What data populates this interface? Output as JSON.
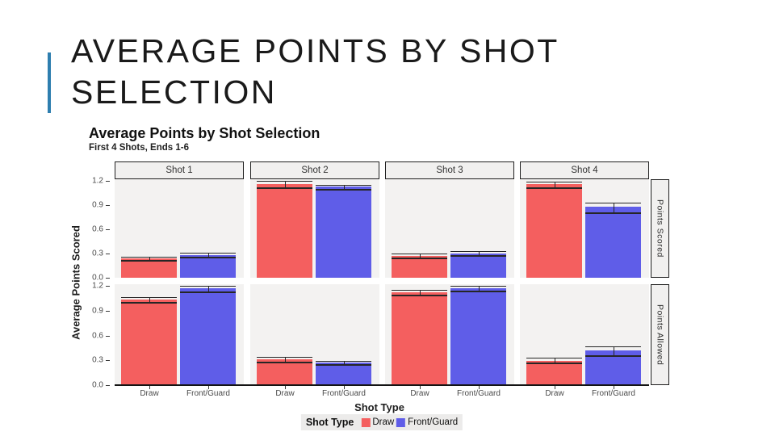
{
  "slide": {
    "title": "AVERAGE POINTS BY SHOT\nSELECTION",
    "accent_color": "#2E7EAF"
  },
  "chart_data": {
    "type": "bar",
    "title": "Average Points by Shot Selection",
    "subtitle": "First 4 Shots, Ends 1-6",
    "xlabel": "Shot Type",
    "ylabel": "Average Points Scored",
    "legend_title": "Shot Type",
    "legend_position": "bottom",
    "grid": false,
    "facet_cols": [
      "Shot 1",
      "Shot 2",
      "Shot 3",
      "Shot 4"
    ],
    "facet_rows": [
      "Points Scored",
      "Points Allowed"
    ],
    "categories": [
      "Draw",
      "Front/Guard"
    ],
    "colors": {
      "Draw": "#F45F5F",
      "Front/Guard": "#5F5DE8"
    },
    "yticks": [
      0.0,
      0.3,
      0.6,
      0.9,
      1.2
    ],
    "ylim": [
      0,
      1.22
    ],
    "panels": [
      {
        "facet_row": "Points Scored",
        "facet_col": "Shot 1",
        "bars": [
          {
            "category": "Draw",
            "value": 0.24,
            "err_lo": 0.22,
            "err_hi": 0.26
          },
          {
            "category": "Front/Guard",
            "value": 0.28,
            "err_lo": 0.26,
            "err_hi": 0.31
          }
        ]
      },
      {
        "facet_row": "Points Scored",
        "facet_col": "Shot 2",
        "bars": [
          {
            "category": "Draw",
            "value": 1.16,
            "err_lo": 1.12,
            "err_hi": 1.2
          },
          {
            "category": "Front/Guard",
            "value": 1.13,
            "err_lo": 1.1,
            "err_hi": 1.15
          }
        ]
      },
      {
        "facet_row": "Points Scored",
        "facet_col": "Shot 3",
        "bars": [
          {
            "category": "Draw",
            "value": 0.27,
            "err_lo": 0.25,
            "err_hi": 0.3
          },
          {
            "category": "Front/Guard",
            "value": 0.3,
            "err_lo": 0.28,
            "err_hi": 0.33
          }
        ]
      },
      {
        "facet_row": "Points Scored",
        "facet_col": "Shot 4",
        "bars": [
          {
            "category": "Draw",
            "value": 1.16,
            "err_lo": 1.12,
            "err_hi": 1.19
          },
          {
            "category": "Front/Guard",
            "value": 0.88,
            "err_lo": 0.81,
            "err_hi": 0.93
          }
        ]
      },
      {
        "facet_row": "Points Allowed",
        "facet_col": "Shot 1",
        "bars": [
          {
            "category": "Draw",
            "value": 1.03,
            "err_lo": 1.01,
            "err_hi": 1.06
          },
          {
            "category": "Front/Guard",
            "value": 1.17,
            "err_lo": 1.13,
            "err_hi": 1.2
          }
        ]
      },
      {
        "facet_row": "Points Allowed",
        "facet_col": "Shot 2",
        "bars": [
          {
            "category": "Draw",
            "value": 0.31,
            "err_lo": 0.28,
            "err_hi": 0.34
          },
          {
            "category": "Front/Guard",
            "value": 0.27,
            "err_lo": 0.25,
            "err_hi": 0.29
          }
        ]
      },
      {
        "facet_row": "Points Allowed",
        "facet_col": "Shot 3",
        "bars": [
          {
            "category": "Draw",
            "value": 1.12,
            "err_lo": 1.09,
            "err_hi": 1.15
          },
          {
            "category": "Front/Guard",
            "value": 1.17,
            "err_lo": 1.14,
            "err_hi": 1.2
          }
        ]
      },
      {
        "facet_row": "Points Allowed",
        "facet_col": "Shot 4",
        "bars": [
          {
            "category": "Draw",
            "value": 0.29,
            "err_lo": 0.27,
            "err_hi": 0.33
          },
          {
            "category": "Front/Guard",
            "value": 0.42,
            "err_lo": 0.36,
            "err_hi": 0.47
          }
        ]
      }
    ]
  }
}
